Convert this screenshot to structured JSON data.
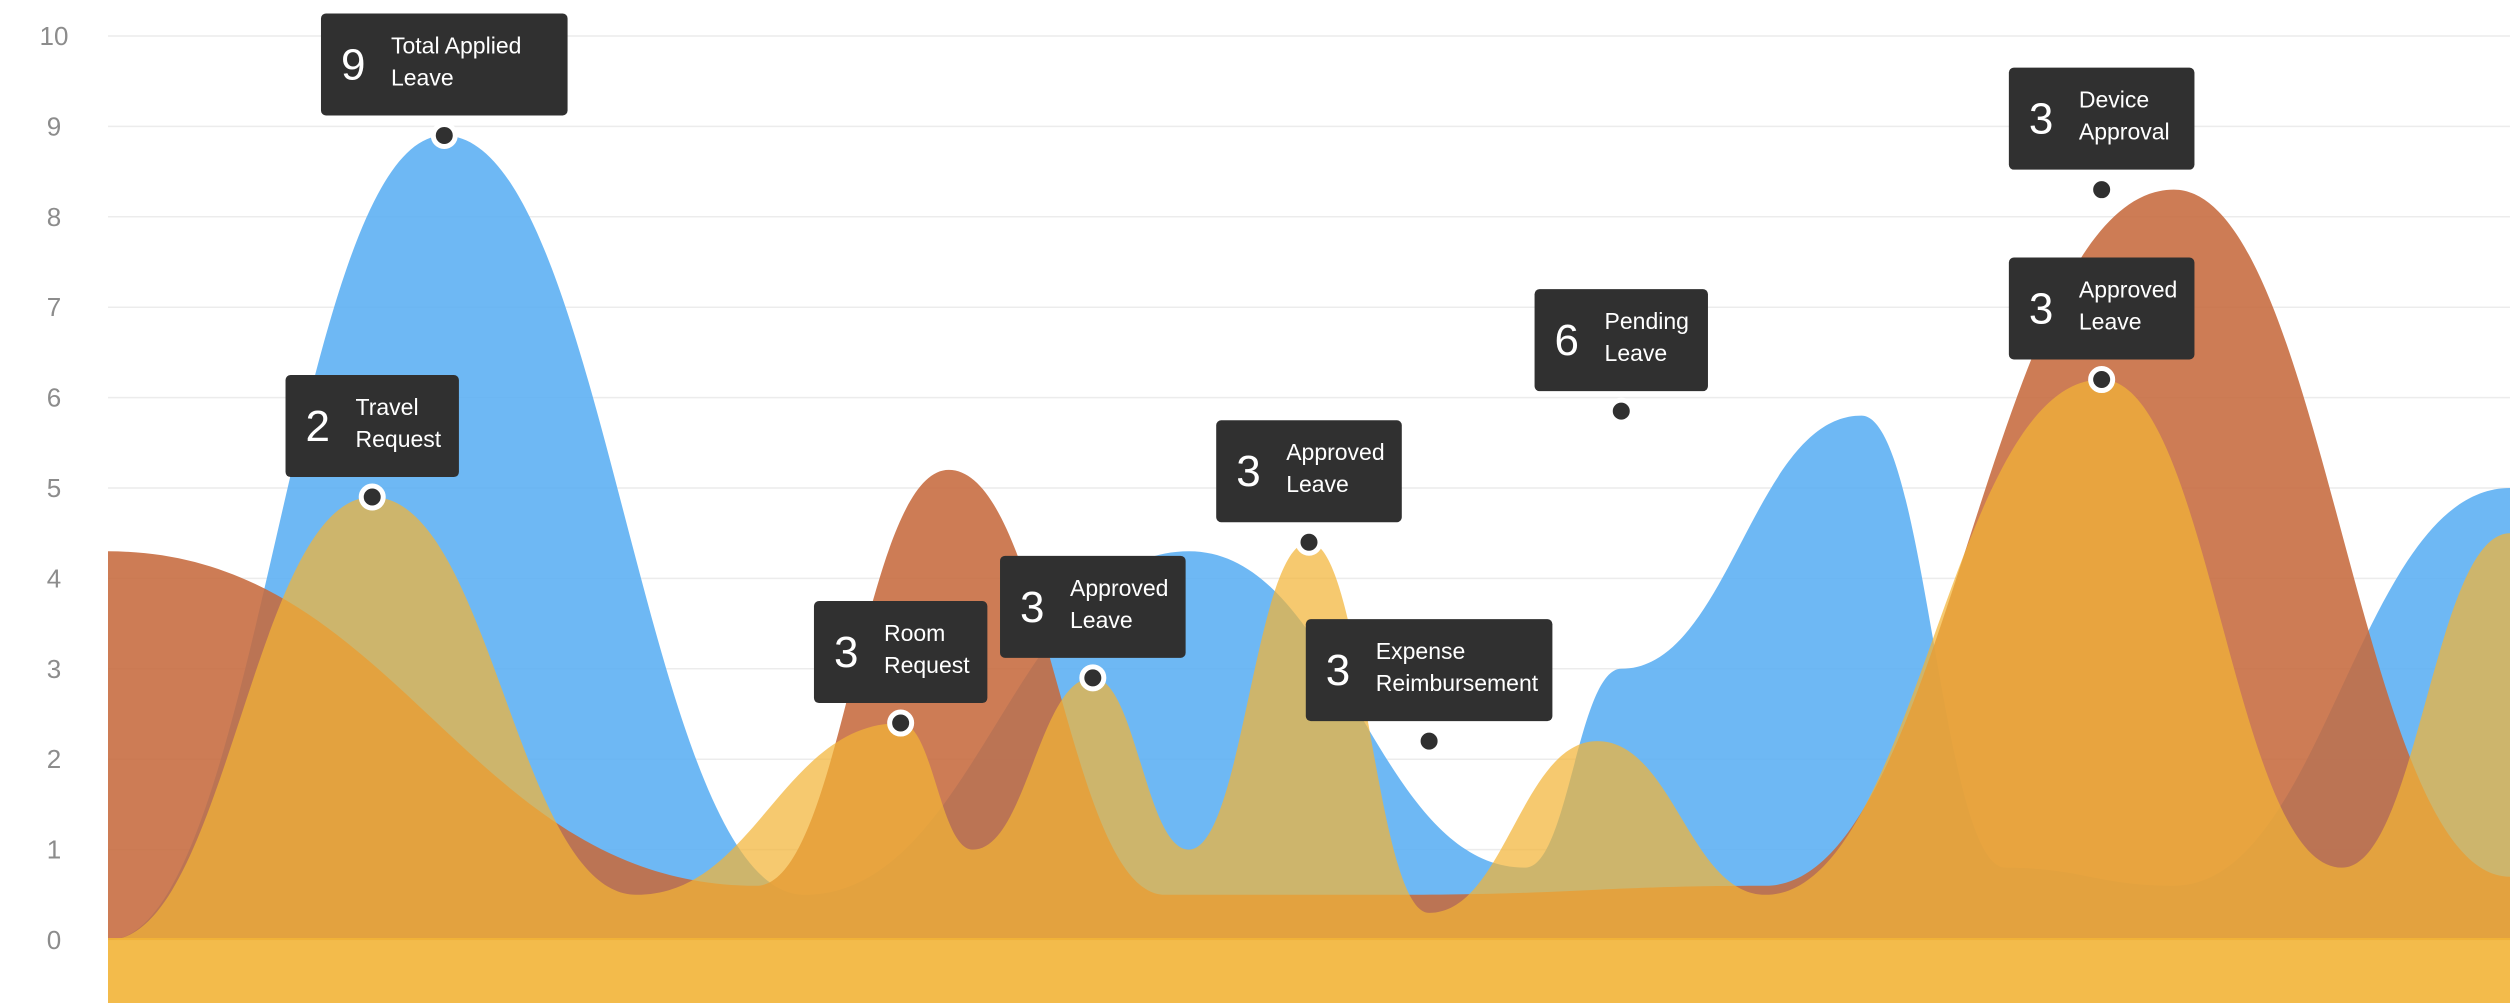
{
  "chart_data": {
    "type": "area",
    "title": "",
    "xlabel": "",
    "ylabel": "",
    "ylim": [
      0,
      10
    ],
    "yticks": [
      0,
      1,
      2,
      3,
      4,
      5,
      6,
      7,
      8,
      9,
      10
    ],
    "grid": true,
    "legend": "none",
    "colors": {
      "blue": "#5aaef2",
      "brown": "#c66a3e",
      "yellow": "#f2b437",
      "olive": "#c9bd7c",
      "mauve": "#a07a6c",
      "tooltip": "#303030"
    },
    "series": [
      {
        "color": "#5aaef2",
        "x": [
          0,
          0.14,
          0.29,
          0.45,
          0.59,
          0.63,
          0.73,
          0.79,
          0.86,
          1.0
        ],
        "values": [
          0,
          8.9,
          0.5,
          4.3,
          0.8,
          3.0,
          5.8,
          0.8,
          0.6,
          5.0
        ]
      },
      {
        "color": "#c66a3e",
        "x": [
          0,
          0.27,
          0.35,
          0.44,
          0.54,
          0.69,
          0.86,
          1.0
        ],
        "values": [
          4.3,
          0.6,
          5.2,
          0.5,
          0.5,
          0.6,
          8.3,
          0.7
        ]
      },
      {
        "color": "#f2b437",
        "x": [
          0,
          0.11,
          0.22,
          0.33,
          0.36,
          0.41,
          0.45,
          0.5,
          0.55,
          0.62,
          0.69,
          0.83,
          0.93,
          1.0
        ],
        "values": [
          0,
          4.9,
          0.5,
          2.4,
          1.0,
          2.9,
          1.0,
          4.4,
          0.3,
          2.2,
          0.5,
          6.2,
          0.8,
          4.5
        ]
      }
    ],
    "annotations": [
      {
        "x": 0.14,
        "y": 8.9,
        "value": "9",
        "text": [
          "Total Applied",
          "Leave"
        ]
      },
      {
        "x": 0.11,
        "y": 4.9,
        "value": "2",
        "text": [
          "Travel",
          "Request"
        ]
      },
      {
        "x": 0.33,
        "y": 2.4,
        "value": "3",
        "text": [
          "Room",
          "Request"
        ]
      },
      {
        "x": 0.41,
        "y": 2.9,
        "value": "3",
        "text": [
          "Approved",
          "Leave"
        ]
      },
      {
        "x": 0.5,
        "y": 4.4,
        "value": "3",
        "text": [
          "Approved",
          "Leave"
        ]
      },
      {
        "x": 0.55,
        "y": 2.2,
        "value": "3",
        "text": [
          "Expense",
          "Reimbursement"
        ]
      },
      {
        "x": 0.63,
        "y": 5.85,
        "value": "6",
        "text": [
          "Pending",
          "Leave"
        ]
      },
      {
        "x": 0.83,
        "y": 8.3,
        "value": "3",
        "text": [
          "Device",
          "Approval"
        ]
      },
      {
        "x": 0.83,
        "y": 6.2,
        "value": "3",
        "text": [
          "Approved",
          "Leave"
        ]
      }
    ]
  }
}
